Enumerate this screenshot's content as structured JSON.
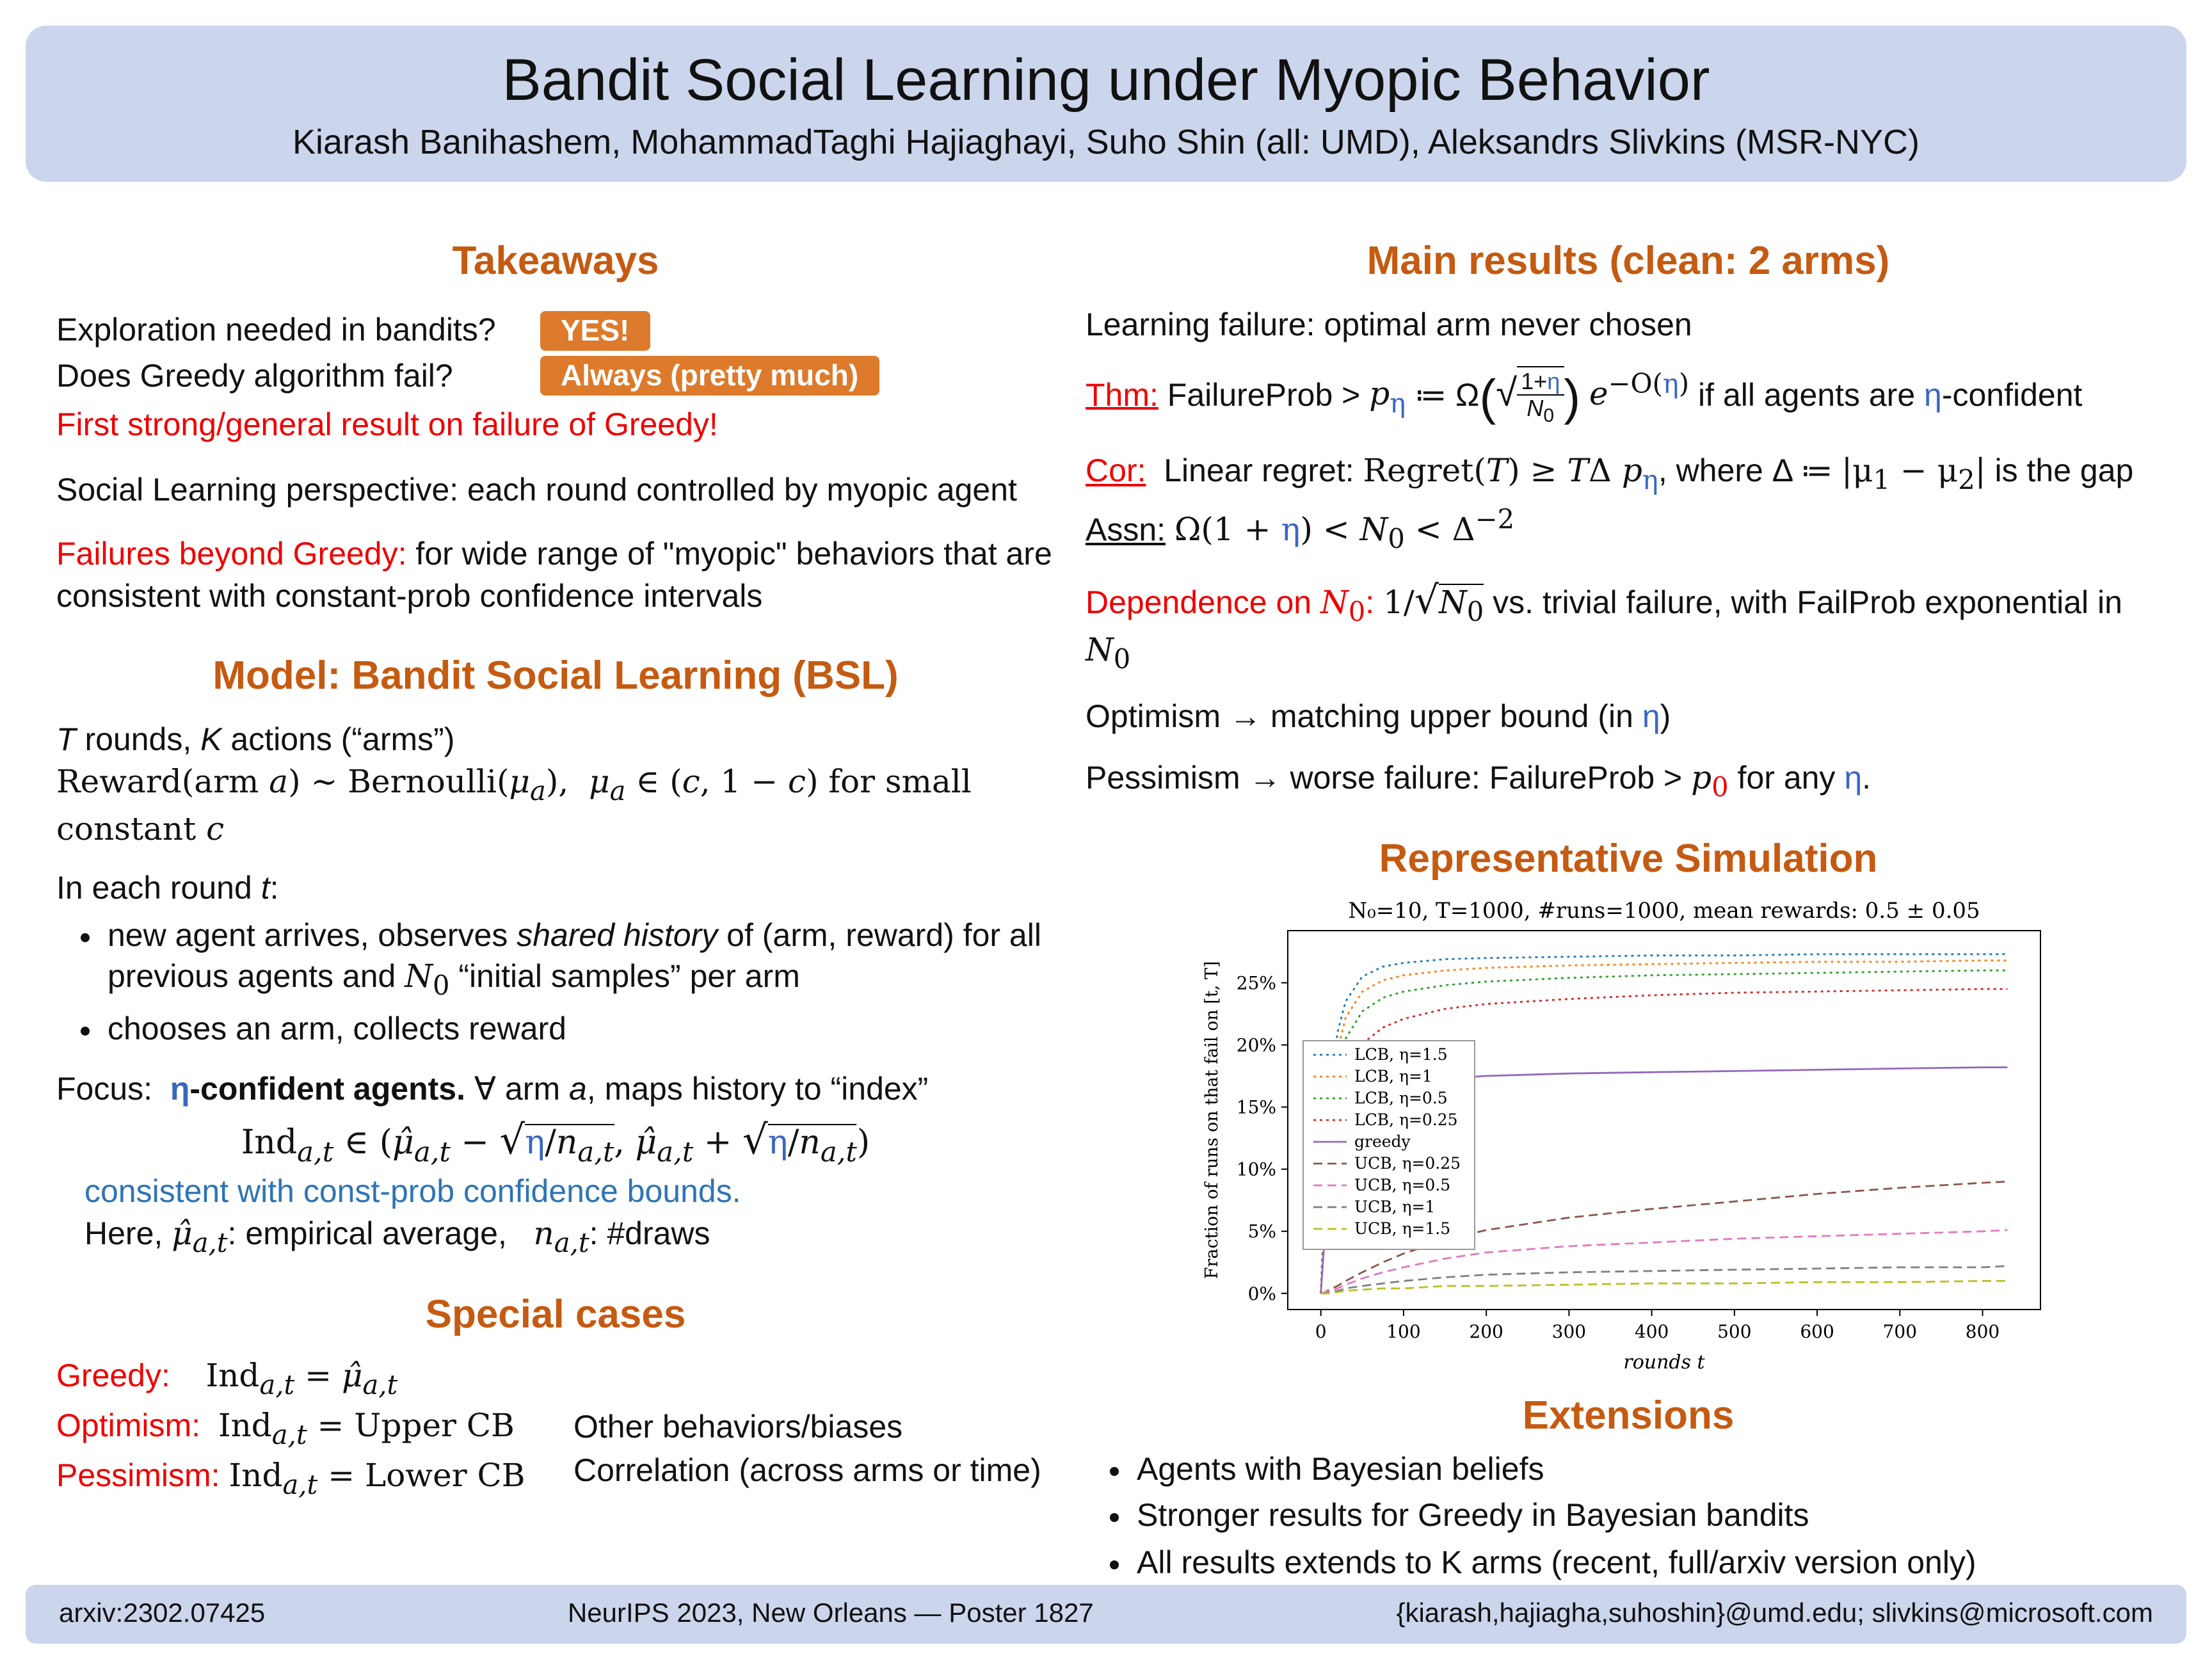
{
  "header": {
    "title": "Bandit Social Learning under Myopic Behavior",
    "authors": "Kiarash Banihashem, MohammadTaghi Hajiaghayi, Suho Shin (all: UMD), Aleksandrs Slivkins (MSR-NYC)"
  },
  "colors": {
    "header_bg": "#CBD5EC",
    "heading_orange": "#C55A11",
    "badge_orange": "#DD7A2B",
    "accent_red": "#EE0000",
    "accent_blue": "#3A66C2"
  },
  "left": {
    "takeaways": {
      "heading": "Takeaways",
      "q1": "Exploration needed in bandits?",
      "badge1": "YES!",
      "q2": "Does Greedy algorithm fail?",
      "badge2": "Always (pretty much)",
      "strong_result": "First strong/general result on failure of Greedy!",
      "social": "Social Learning perspective: each round controlled by myopic agent",
      "failures_label": "Failures beyond Greedy:",
      "failures_rest": " for wide range of \"myopic\" behaviors that are consistent with constant-prob confidence intervals"
    },
    "model": {
      "heading": "Model: Bandit Social Learning (BSL)",
      "line1_html": "<i>T</i> rounds, <i>K</i> actions (“arms”)",
      "line2_html": "Reward(arm <i>a</i>) ∼ Bernoulli(<i>μ<sub>a</sub></i>),&nbsp; <i>μ<sub>a</sub></i> ∈ (<i>c</i>, 1 − <i>c</i>) for small constant <i>c</i>",
      "round_intro_html": "In each round <i>t</i>:",
      "bullet1_html": "new agent arrives, observes <i>shared history</i> of (arm, reward) for all previous agents and <span class='math'><i>N</i><sub>0</sub></span> “initial samples” per arm",
      "bullet2": "chooses an arm, collects reward",
      "focus_html": "Focus:&nbsp; <b><span class='blue'>η</span>-confident agents.</b> ∀ arm <i>a</i>, maps history to “index”",
      "index_html": "Ind<sub><i>a,t</i></sub> ∈ (<i>μ̂<sub>a,t</sub></i> − <span class='sqrt'>√</span><span class='ov'><span class='blue'>η</span>/<i>n<sub>a,t</sub></i></span>, <i>μ̂<sub>a,t</sub></i> + <span class='sqrt'>√</span><span class='ov'><span class='blue'>η</span>/<i>n<sub>a,t</sub></i></span>)",
      "consistent": "consistent with const-prob confidence bounds.",
      "here_html": "Here, <span class='math'><i>μ̂<sub>a,t</sub></i></span>: empirical average, &nbsp; <span class='math'><i>n<sub>a,t</sub></i></span>:  #draws"
    },
    "special": {
      "heading": "Special cases",
      "rows": [
        {
          "label": "Greedy:",
          "def_html": "Ind<sub><i>a,t</i></sub> = <i>μ̂<sub>a,t</sub></i>"
        },
        {
          "label": "Optimism:",
          "def_html": "Ind<sub><i>a,t</i></sub> = Upper CB"
        },
        {
          "label": "Pessimism:",
          "def_html": "Ind<sub><i>a,t</i></sub> = Lower CB"
        }
      ],
      "other1": "Other behaviors/biases",
      "other2": "Correlation (across arms or time)"
    }
  },
  "right": {
    "main": {
      "heading": "Main results (clean: 2 arms)",
      "line1": "Learning failure: optimal arm never chosen",
      "thm_html": "<span class='red u'>Thm:</span> FailureProb > <span class='math'><i>p</i><sub class='blue'>η</sub></span> ≔ Ω<span class='bigp'>(</span><span class='sqrt'>√</span><span class='frac rooted'><span class='fn'>1+<span class='blue'>η</span></span><span class='fd'><i>N</i><sub>0</sub></span></span><span class='bigp'>)</span> <span class='math'><i>e</i><sup>−O(<span class='blue'>η</span>)</sup></span> if all agents are <span class='blue'>η</span>-confident",
      "cor_html": "<span class='red u'>Cor:</span>&nbsp; Linear regret: <span class='math'>Regret(<i>T</i>) ≥ <i>T</i>Δ <i>p</i><sub class='blue'>η</sub></span>, where Δ ≔ <span class='math'>|μ<sub>1</sub> − μ<sub>2</sub>|</span> is the gap",
      "assn_html": "<span class='u'>Assn:</span> <span class='math'>Ω(1 + <span class='blue'>η</span>) < <i>N</i><sub>0</sub> < Δ<sup>−2</sup></span>",
      "dep_html": "<span class='red'>Dependence on <span class='math'><i>N</i><sub>0</sub></span>:</span> <span class='math'>1/<span class='sqrt'>√</span><span class='ov'><i>N</i><sub>0</sub></span></span> vs. trivial failure, with FailProb exponential in <span class='math'><i>N</i><sub>0</sub></span>",
      "optimism_html": "Optimism → matching upper bound (in <span class='blue'>η</span>)",
      "pessimism_html": "Pessimism → worse failure: FailureProb > <span class='math'><i>p</i><sub class='red'>0</sub></span> for any <span class='blue'>η</span>."
    },
    "sim": {
      "heading": "Representative Simulation"
    },
    "extensions": {
      "heading": "Extensions",
      "bullets": [
        "Agents with Bayesian beliefs",
        "Stronger results for Greedy in Bayesian bandits",
        "All results extends to K arms (recent, full/arxiv version only)"
      ]
    }
  },
  "chart_data": {
    "type": "line",
    "title": "N₀=10, T=1000, #runs=1000, mean rewards: 0.5 ± 0.05",
    "xlabel": "rounds t",
    "ylabel": "Fraction of runs on that fail on [t, T]",
    "xlim": [
      -40,
      870
    ],
    "ylim": [
      -0.013,
      0.292
    ],
    "xticks": [
      0,
      100,
      200,
      300,
      400,
      500,
      600,
      700,
      800
    ],
    "ytick_values": [
      0,
      0.05,
      0.1,
      0.15,
      0.2,
      0.25
    ],
    "yticks": [
      "0%",
      "5%",
      "10%",
      "15%",
      "20%",
      "25%"
    ],
    "grid": false,
    "legend_position": "center-left",
    "x": [
      0,
      5,
      10,
      20,
      30,
      50,
      75,
      100,
      150,
      200,
      300,
      400,
      500,
      600,
      700,
      800,
      830
    ],
    "series": [
      {
        "name": "LCB, η=1.5",
        "color": "#1f77b4",
        "style": "dotted",
        "y": [
          0,
          0.09,
          0.15,
          0.21,
          0.235,
          0.255,
          0.263,
          0.266,
          0.269,
          0.27,
          0.271,
          0.272,
          0.272,
          0.273,
          0.273,
          0.273,
          0.273
        ]
      },
      {
        "name": "LCB, η=1",
        "color": "#ff7f0e",
        "style": "dotted",
        "y": [
          0,
          0.085,
          0.14,
          0.195,
          0.222,
          0.243,
          0.252,
          0.256,
          0.26,
          0.262,
          0.264,
          0.265,
          0.266,
          0.267,
          0.267,
          0.268,
          0.268
        ]
      },
      {
        "name": "LCB, η=0.5",
        "color": "#2ca02c",
        "style": "dotted",
        "y": [
          0,
          0.075,
          0.125,
          0.178,
          0.205,
          0.227,
          0.238,
          0.243,
          0.248,
          0.251,
          0.254,
          0.256,
          0.257,
          0.258,
          0.259,
          0.26,
          0.26
        ]
      },
      {
        "name": "LCB, η=0.25",
        "color": "#d62728",
        "style": "dotted",
        "y": [
          0,
          0.06,
          0.1,
          0.148,
          0.176,
          0.201,
          0.214,
          0.221,
          0.229,
          0.233,
          0.237,
          0.24,
          0.242,
          0.243,
          0.244,
          0.245,
          0.245
        ]
      },
      {
        "name": "greedy",
        "color": "#9467bd",
        "style": "solid",
        "y": [
          0,
          0.05,
          0.085,
          0.124,
          0.144,
          0.159,
          0.167,
          0.17,
          0.173,
          0.175,
          0.177,
          0.178,
          0.179,
          0.18,
          0.181,
          0.182,
          0.182
        ]
      },
      {
        "name": "UCB, η=0.25",
        "color": "#8c564b",
        "style": "dashed",
        "y": [
          0,
          0.001,
          0.003,
          0.006,
          0.01,
          0.017,
          0.025,
          0.032,
          0.043,
          0.051,
          0.061,
          0.068,
          0.074,
          0.08,
          0.085,
          0.089,
          0.09
        ]
      },
      {
        "name": "UCB, η=0.5",
        "color": "#e377c2",
        "style": "dashed",
        "y": [
          0,
          0.001,
          0.002,
          0.004,
          0.007,
          0.012,
          0.017,
          0.021,
          0.028,
          0.033,
          0.038,
          0.041,
          0.044,
          0.046,
          0.048,
          0.05,
          0.051
        ]
      },
      {
        "name": "UCB, η=1",
        "color": "#7f7f7f",
        "style": "dashed",
        "y": [
          0,
          0.0,
          0.001,
          0.002,
          0.004,
          0.006,
          0.008,
          0.01,
          0.013,
          0.015,
          0.017,
          0.018,
          0.019,
          0.02,
          0.021,
          0.021,
          0.022
        ]
      },
      {
        "name": "UCB, η=1.5",
        "color": "#bcbd22",
        "style": "dashed",
        "y": [
          0,
          0.0,
          0.0,
          0.001,
          0.002,
          0.003,
          0.004,
          0.004,
          0.006,
          0.006,
          0.007,
          0.008,
          0.008,
          0.009,
          0.009,
          0.01,
          0.01
        ]
      }
    ]
  },
  "footer": {
    "left": "arxiv:2302.07425",
    "center": "NeurIPS 2023, New Orleans — Poster 1827",
    "right": "{kiarash,hajiagha,suhoshin}@umd.edu;  slivkins@microsoft.com"
  }
}
